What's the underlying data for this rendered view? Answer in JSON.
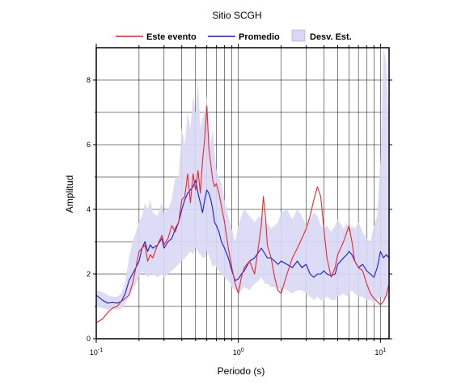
{
  "chart_data": {
    "type": "line",
    "title": "Sitio SCGH",
    "xlabel": "Periodo (s)",
    "ylabel": "Amplitud",
    "xscale": "log",
    "xlim": [
      0.1,
      11.5
    ],
    "ylim": [
      0,
      9
    ],
    "grid": true,
    "legend_position": "top",
    "x_ticks": [
      {
        "base": "10",
        "exp": "-1"
      },
      {
        "base": "10",
        "exp": "0"
      },
      {
        "base": "10",
        "exp": "1"
      }
    ],
    "y_ticks": [
      "0",
      "2",
      "4",
      "6",
      "8"
    ],
    "colors": {
      "event": "#e8272b",
      "mean": "#1a1ad8",
      "band": "#d8d8f6"
    },
    "series": [
      {
        "name": "Este evento",
        "x": [
          0.1,
          0.11,
          0.12,
          0.13,
          0.14,
          0.15,
          0.16,
          0.17,
          0.18,
          0.19,
          0.2,
          0.21,
          0.22,
          0.23,
          0.24,
          0.25,
          0.27,
          0.29,
          0.3,
          0.32,
          0.34,
          0.36,
          0.38,
          0.4,
          0.42,
          0.44,
          0.46,
          0.48,
          0.5,
          0.52,
          0.54,
          0.56,
          0.58,
          0.6,
          0.62,
          0.64,
          0.66,
          0.68,
          0.7,
          0.73,
          0.76,
          0.8,
          0.85,
          0.9,
          0.95,
          1.0,
          1.05,
          1.1,
          1.2,
          1.3,
          1.4,
          1.45,
          1.5,
          1.55,
          1.6,
          1.7,
          1.8,
          1.9,
          2.0,
          2.2,
          2.4,
          2.6,
          2.8,
          3.0,
          3.2,
          3.4,
          3.6,
          3.8,
          4.0,
          4.2,
          4.5,
          4.8,
          5.0,
          5.5,
          5.8,
          6.0,
          6.3,
          6.6,
          7.0,
          7.5,
          8.0,
          8.5,
          9.0,
          9.5,
          10.0,
          10.5,
          11.0,
          11.5
        ],
        "values": [
          0.5,
          0.6,
          0.8,
          0.95,
          1.0,
          1.15,
          1.25,
          1.35,
          1.7,
          2.2,
          2.7,
          2.8,
          2.9,
          2.4,
          2.6,
          2.5,
          2.9,
          3.2,
          2.9,
          3.1,
          3.5,
          3.3,
          3.6,
          4.3,
          4.4,
          5.1,
          4.2,
          5.1,
          4.6,
          5.2,
          4.5,
          5.5,
          6.2,
          7.2,
          5.9,
          5.4,
          4.9,
          4.7,
          4.8,
          4.5,
          4.1,
          3.6,
          2.8,
          2.2,
          1.7,
          1.4,
          1.9,
          2.2,
          2.4,
          2.0,
          3.0,
          3.5,
          4.4,
          3.8,
          2.9,
          2.5,
          1.9,
          1.5,
          1.4,
          2.0,
          2.5,
          2.8,
          3.1,
          3.4,
          3.8,
          4.3,
          4.7,
          4.4,
          3.4,
          2.5,
          1.9,
          2.2,
          2.6,
          3.0,
          3.3,
          3.5,
          3.0,
          2.4,
          2.2,
          2.1,
          1.7,
          1.4,
          1.25,
          1.15,
          1.05,
          1.15,
          1.35,
          1.7
        ]
      },
      {
        "name": "Promedio",
        "x": [
          0.1,
          0.11,
          0.12,
          0.13,
          0.14,
          0.15,
          0.16,
          0.17,
          0.18,
          0.19,
          0.2,
          0.21,
          0.22,
          0.23,
          0.24,
          0.25,
          0.27,
          0.29,
          0.3,
          0.32,
          0.34,
          0.36,
          0.38,
          0.4,
          0.42,
          0.44,
          0.46,
          0.48,
          0.5,
          0.52,
          0.54,
          0.56,
          0.58,
          0.6,
          0.62,
          0.64,
          0.66,
          0.68,
          0.7,
          0.73,
          0.76,
          0.8,
          0.85,
          0.9,
          0.95,
          1.0,
          1.05,
          1.1,
          1.2,
          1.3,
          1.4,
          1.45,
          1.5,
          1.55,
          1.6,
          1.7,
          1.8,
          1.9,
          2.0,
          2.2,
          2.4,
          2.6,
          2.8,
          3.0,
          3.2,
          3.4,
          3.6,
          3.8,
          4.0,
          4.2,
          4.5,
          4.8,
          5.0,
          5.5,
          5.8,
          6.0,
          6.3,
          6.6,
          7.0,
          7.5,
          8.0,
          8.5,
          9.0,
          9.5,
          10.0,
          10.5,
          11.0,
          11.5
        ],
        "values": [
          1.35,
          1.2,
          1.1,
          1.12,
          1.1,
          1.15,
          1.4,
          1.8,
          2.0,
          2.2,
          2.4,
          2.8,
          3.0,
          2.7,
          2.9,
          2.8,
          2.9,
          3.1,
          2.8,
          3.0,
          3.1,
          3.4,
          3.6,
          4.0,
          4.3,
          4.5,
          4.6,
          4.7,
          4.9,
          4.5,
          4.2,
          3.9,
          4.3,
          4.6,
          4.5,
          4.3,
          4.0,
          3.6,
          3.5,
          3.3,
          3.0,
          2.8,
          2.5,
          2.1,
          1.8,
          1.85,
          2.0,
          2.1,
          2.4,
          2.5,
          2.7,
          2.8,
          2.7,
          2.6,
          2.5,
          2.5,
          2.4,
          2.3,
          2.4,
          2.3,
          2.2,
          2.4,
          2.2,
          2.3,
          2.0,
          1.9,
          2.0,
          2.0,
          2.1,
          2.0,
          1.95,
          2.0,
          2.3,
          2.5,
          2.6,
          2.7,
          2.6,
          2.4,
          2.2,
          2.3,
          2.1,
          2.0,
          1.9,
          2.2,
          2.7,
          2.5,
          2.6,
          2.5
        ]
      },
      {
        "name": "Desv. Est.",
        "x": [
          0.1,
          0.11,
          0.12,
          0.13,
          0.14,
          0.15,
          0.16,
          0.17,
          0.18,
          0.19,
          0.2,
          0.21,
          0.22,
          0.23,
          0.24,
          0.25,
          0.27,
          0.29,
          0.3,
          0.32,
          0.34,
          0.36,
          0.38,
          0.4,
          0.42,
          0.44,
          0.46,
          0.48,
          0.5,
          0.52,
          0.54,
          0.56,
          0.58,
          0.6,
          0.62,
          0.64,
          0.66,
          0.68,
          0.7,
          0.73,
          0.76,
          0.8,
          0.85,
          0.9,
          0.95,
          1.0,
          1.05,
          1.1,
          1.2,
          1.3,
          1.4,
          1.45,
          1.5,
          1.55,
          1.6,
          1.7,
          1.8,
          1.9,
          2.0,
          2.2,
          2.4,
          2.6,
          2.8,
          3.0,
          3.2,
          3.4,
          3.6,
          3.8,
          4.0,
          4.2,
          4.5,
          4.8,
          5.0,
          5.5,
          5.8,
          6.0,
          6.3,
          6.6,
          7.0,
          7.5,
          8.0,
          8.5,
          9.0,
          9.5,
          10.0,
          10.5,
          11.0,
          11.5
        ],
        "upper": [
          1.5,
          1.45,
          1.35,
          1.3,
          1.3,
          1.4,
          1.75,
          2.5,
          3.0,
          3.3,
          3.6,
          3.8,
          4.2,
          4.0,
          4.3,
          3.9,
          3.8,
          4.2,
          3.9,
          4.0,
          4.3,
          5.0,
          5.0,
          6.5,
          6.0,
          7.0,
          6.5,
          7.5,
          7.0,
          8.0,
          6.5,
          6.8,
          7.0,
          7.5,
          6.5,
          6.0,
          6.5,
          5.8,
          5.2,
          5.0,
          4.8,
          4.3,
          3.8,
          3.4,
          3.0,
          3.5,
          3.8,
          4.0,
          3.8,
          3.6,
          3.8,
          3.7,
          3.9,
          3.5,
          3.6,
          3.4,
          3.5,
          3.6,
          3.9,
          4.0,
          3.7,
          4.0,
          3.8,
          3.5,
          3.7,
          3.9,
          3.8,
          3.5,
          3.4,
          3.5,
          3.3,
          3.5,
          3.7,
          3.4,
          3.6,
          3.3,
          3.5,
          3.4,
          3.6,
          3.3,
          3.1,
          3.0,
          3.5,
          3.8,
          5.5,
          9.0,
          8.5,
          6.5
        ],
        "lower": [
          1.0,
          0.95,
          0.9,
          0.9,
          0.9,
          0.92,
          1.1,
          1.3,
          1.5,
          1.7,
          1.9,
          2.1,
          2.0,
          1.9,
          2.0,
          2.0,
          1.9,
          2.0,
          1.9,
          2.0,
          2.1,
          2.2,
          2.3,
          2.4,
          2.5,
          2.6,
          2.7,
          2.6,
          2.8,
          2.7,
          2.6,
          2.5,
          2.5,
          2.7,
          2.6,
          2.4,
          2.2,
          2.3,
          2.2,
          2.1,
          2.0,
          1.9,
          1.8,
          1.6,
          1.5,
          1.4,
          1.5,
          1.6,
          1.5,
          1.7,
          1.8,
          1.9,
          1.8,
          1.7,
          1.7,
          1.6,
          1.6,
          1.5,
          1.6,
          1.5,
          1.4,
          1.5,
          1.5,
          1.4,
          1.3,
          1.2,
          1.3,
          1.2,
          1.2,
          1.3,
          1.2,
          1.2,
          1.3,
          1.4,
          1.3,
          1.4,
          1.5,
          1.4,
          1.3,
          1.3,
          1.2,
          1.2,
          1.1,
          1.2,
          1.3,
          1.2,
          1.3,
          1.2
        ]
      }
    ]
  }
}
